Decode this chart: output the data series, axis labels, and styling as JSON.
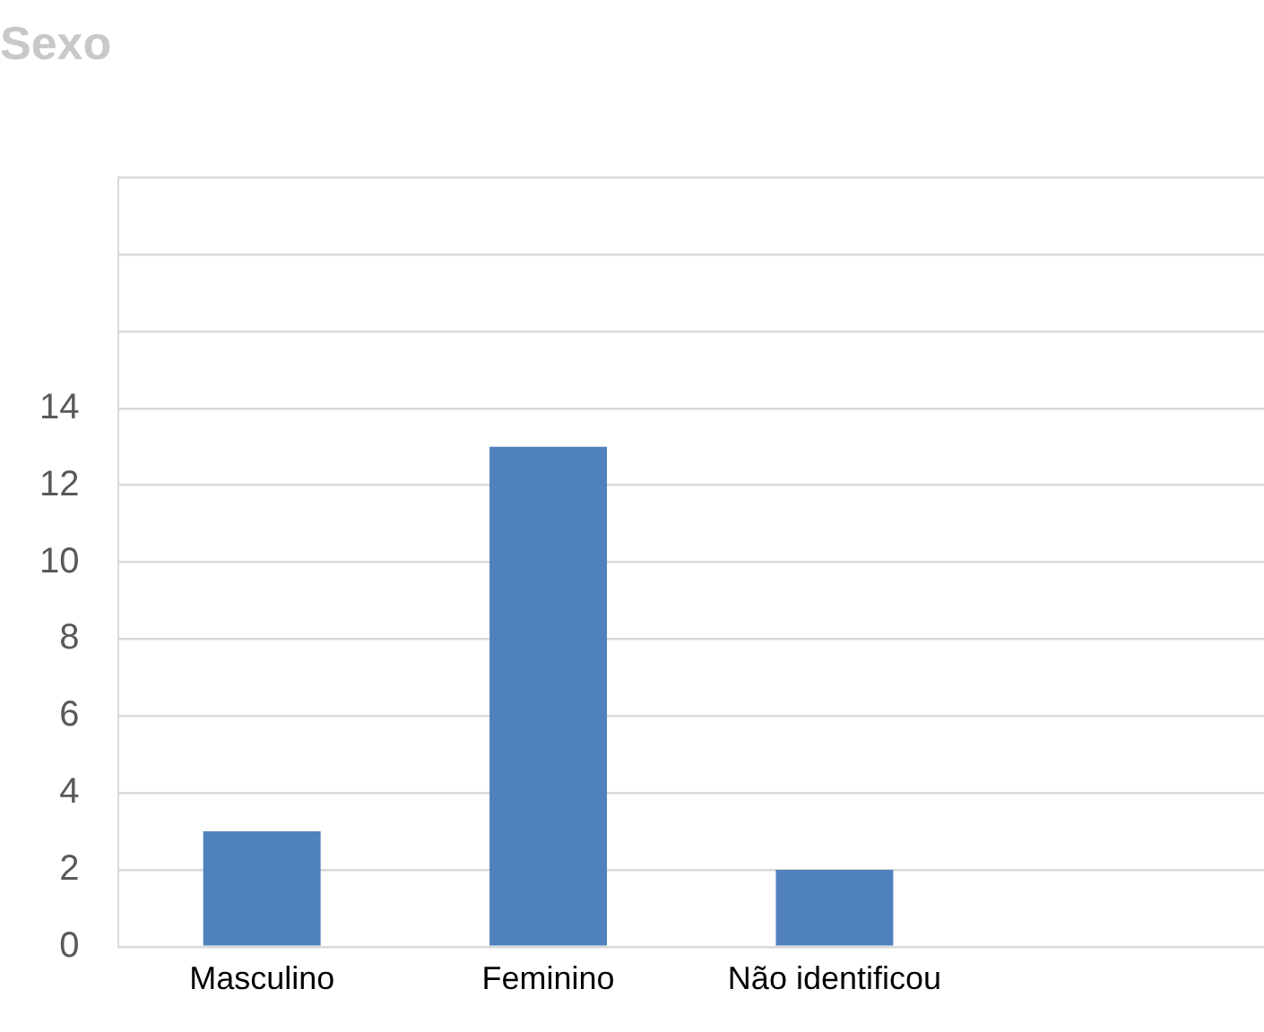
{
  "chart_data": {
    "type": "bar",
    "title": "Sexo",
    "categories": [
      "Masculino",
      "Feminino",
      "Não identificou",
      null
    ],
    "values": [
      3,
      13,
      2,
      null
    ],
    "color": "#4f81bd",
    "ylim": [
      0,
      20
    ],
    "yticks": [
      0,
      2,
      4,
      6,
      8,
      10,
      12,
      14,
      {
        "value": 16,
        "label": null
      },
      {
        "value": 18,
        "label": null
      },
      {
        "value": 20,
        "label": null
      }
    ],
    "grid": "y",
    "legend": false
  }
}
